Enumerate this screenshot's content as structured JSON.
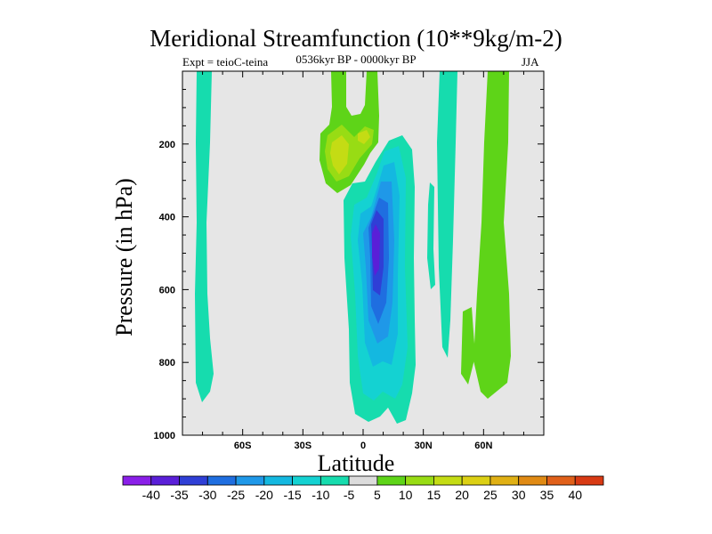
{
  "chart_data": {
    "type": "contour",
    "title": "Meridional Streamfunction (10**9kg/m-2)",
    "left_label": "Expt = teioC-teina",
    "center_label": "0536kyr BP - 0000kyr BP",
    "right_label": "JJA",
    "xlabel": "Latitude",
    "ylabel": "Pressure (in hPa)",
    "xlim": [
      -90,
      90
    ],
    "ylim": [
      1000,
      0
    ],
    "x_ticks": [
      {
        "value": -60,
        "label": "60S"
      },
      {
        "value": -30,
        "label": "30S"
      },
      {
        "value": 0,
        "label": "0"
      },
      {
        "value": 30,
        "label": "30N"
      },
      {
        "value": 60,
        "label": "60N"
      }
    ],
    "y_ticks": [
      {
        "value": 200,
        "label": "200"
      },
      {
        "value": 400,
        "label": "400"
      },
      {
        "value": 600,
        "label": "600"
      },
      {
        "value": 800,
        "label": "800"
      },
      {
        "value": 1000,
        "label": "1000"
      }
    ],
    "colorbar": {
      "levels": [
        "-40",
        "-35",
        "-30",
        "-25",
        "-20",
        "-15",
        "-10",
        "-5",
        "5",
        "10",
        "15",
        "20",
        "25",
        "30",
        "35",
        "40"
      ],
      "colors": [
        "#8a1fe8",
        "#5a1fd8",
        "#2f3fd6",
        "#1f6ee0",
        "#1f98e8",
        "#14b8e0",
        "#14d2d2",
        "#16dcae",
        "#dcdcdc",
        "#5ed418",
        "#98dc14",
        "#c4dc14",
        "#dcd014",
        "#e0b014",
        "#e08a14",
        "#e0601a",
        "#d83a14"
      ]
    },
    "features": [
      {
        "name": "negative-cell-main",
        "center_lat": 6,
        "center_p": 480,
        "min_value": -35,
        "p_range": [
          190,
          960
        ]
      },
      {
        "name": "negative-column-45S",
        "lat": -77,
        "value": -5,
        "p_range": [
          0,
          900
        ]
      },
      {
        "name": "negative-column-35N",
        "lat": 44,
        "value": -5,
        "p_range": [
          0,
          790
        ]
      },
      {
        "name": "negative-streak-30N",
        "lat": 31,
        "value": -5,
        "p_range": [
          280,
          600
        ]
      },
      {
        "name": "positive-column-60N",
        "lat": 63,
        "value": 5,
        "p_range": [
          0,
          880
        ]
      },
      {
        "name": "positive-cell-upper",
        "center_lat": -10,
        "center_p": 220,
        "max_value": 15,
        "p_range": [
          0,
          320
        ]
      }
    ]
  }
}
